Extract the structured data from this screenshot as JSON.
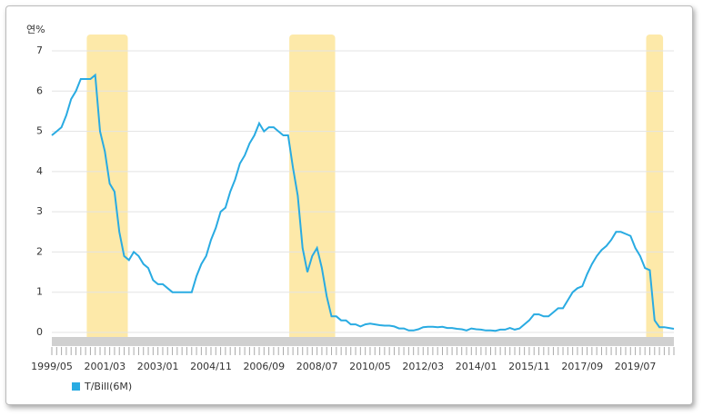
{
  "chart_data": {
    "type": "line",
    "y_unit_label": "연%",
    "categories": [
      "1999/05",
      null,
      null,
      null,
      null,
      null,
      null,
      null,
      null,
      null,
      null,
      "2001/03",
      null,
      null,
      null,
      null,
      null,
      null,
      null,
      null,
      null,
      null,
      "2003/01",
      null,
      null,
      null,
      null,
      null,
      null,
      null,
      null,
      null,
      null,
      "2004/11",
      null,
      null,
      null,
      null,
      null,
      null,
      null,
      null,
      null,
      null,
      "2006/09",
      null,
      null,
      null,
      null,
      null,
      null,
      null,
      null,
      null,
      null,
      "2008/07",
      null,
      null,
      null,
      null,
      null,
      null,
      null,
      null,
      null,
      null,
      "2010/05",
      null,
      null,
      null,
      null,
      null,
      null,
      null,
      null,
      null,
      null,
      "2012/03",
      null,
      null,
      null,
      null,
      null,
      null,
      null,
      null,
      null,
      null,
      "2014/01",
      null,
      null,
      null,
      null,
      null,
      null,
      null,
      null,
      null,
      null,
      "2015/11",
      null,
      null,
      null,
      null,
      null,
      null,
      null,
      null,
      null,
      null,
      "2017/09",
      null,
      null,
      null,
      null,
      null,
      null,
      null,
      null,
      null,
      null,
      "2019/07",
      null,
      null,
      null,
      null,
      null,
      null,
      null,
      null
    ],
    "series": [
      {
        "name": "T/Bill(6M)",
        "color": "#29abe2",
        "values": [
          4.9,
          5.0,
          5.1,
          5.4,
          5.8,
          6.0,
          6.3,
          6.3,
          6.3,
          6.4,
          5.0,
          4.5,
          3.7,
          3.5,
          2.5,
          1.9,
          1.8,
          2.0,
          1.9,
          1.7,
          1.6,
          1.3,
          1.2,
          1.2,
          1.1,
          1.0,
          1.0,
          1.0,
          1.0,
          1.0,
          1.4,
          1.7,
          1.9,
          2.3,
          2.6,
          3.0,
          3.1,
          3.5,
          3.8,
          4.2,
          4.4,
          4.7,
          4.9,
          5.2,
          5.0,
          5.1,
          5.1,
          5.0,
          4.9,
          4.9,
          4.1,
          3.4,
          2.1,
          1.5,
          1.9,
          2.1,
          1.6,
          0.9,
          0.4,
          0.4,
          0.3,
          0.3,
          0.2,
          0.2,
          0.15,
          0.2,
          0.22,
          0.2,
          0.18,
          0.17,
          0.17,
          0.15,
          0.1,
          0.1,
          0.05,
          0.05,
          0.08,
          0.13,
          0.14,
          0.14,
          0.13,
          0.14,
          0.11,
          0.11,
          0.09,
          0.08,
          0.05,
          0.1,
          0.08,
          0.07,
          0.05,
          0.05,
          0.04,
          0.07,
          0.07,
          0.11,
          0.07,
          0.1,
          0.2,
          0.3,
          0.45,
          0.45,
          0.4,
          0.4,
          0.5,
          0.6,
          0.6,
          0.8,
          1.0,
          1.1,
          1.15,
          1.45,
          1.7,
          1.9,
          2.05,
          2.15,
          2.3,
          2.5,
          2.5,
          2.45,
          2.4,
          2.1,
          1.9,
          1.6,
          1.55,
          0.3,
          0.13,
          0.13,
          0.11,
          0.09
        ]
      }
    ],
    "shaded_ranges": [
      [
        8,
        15
      ],
      [
        50,
        58
      ],
      [
        124,
        126
      ]
    ],
    "shade_color": "#fde9a9",
    "ylim": [
      0,
      7
    ],
    "yticks": [
      0,
      1,
      2,
      3,
      4,
      5,
      6,
      7
    ],
    "grid": true
  }
}
